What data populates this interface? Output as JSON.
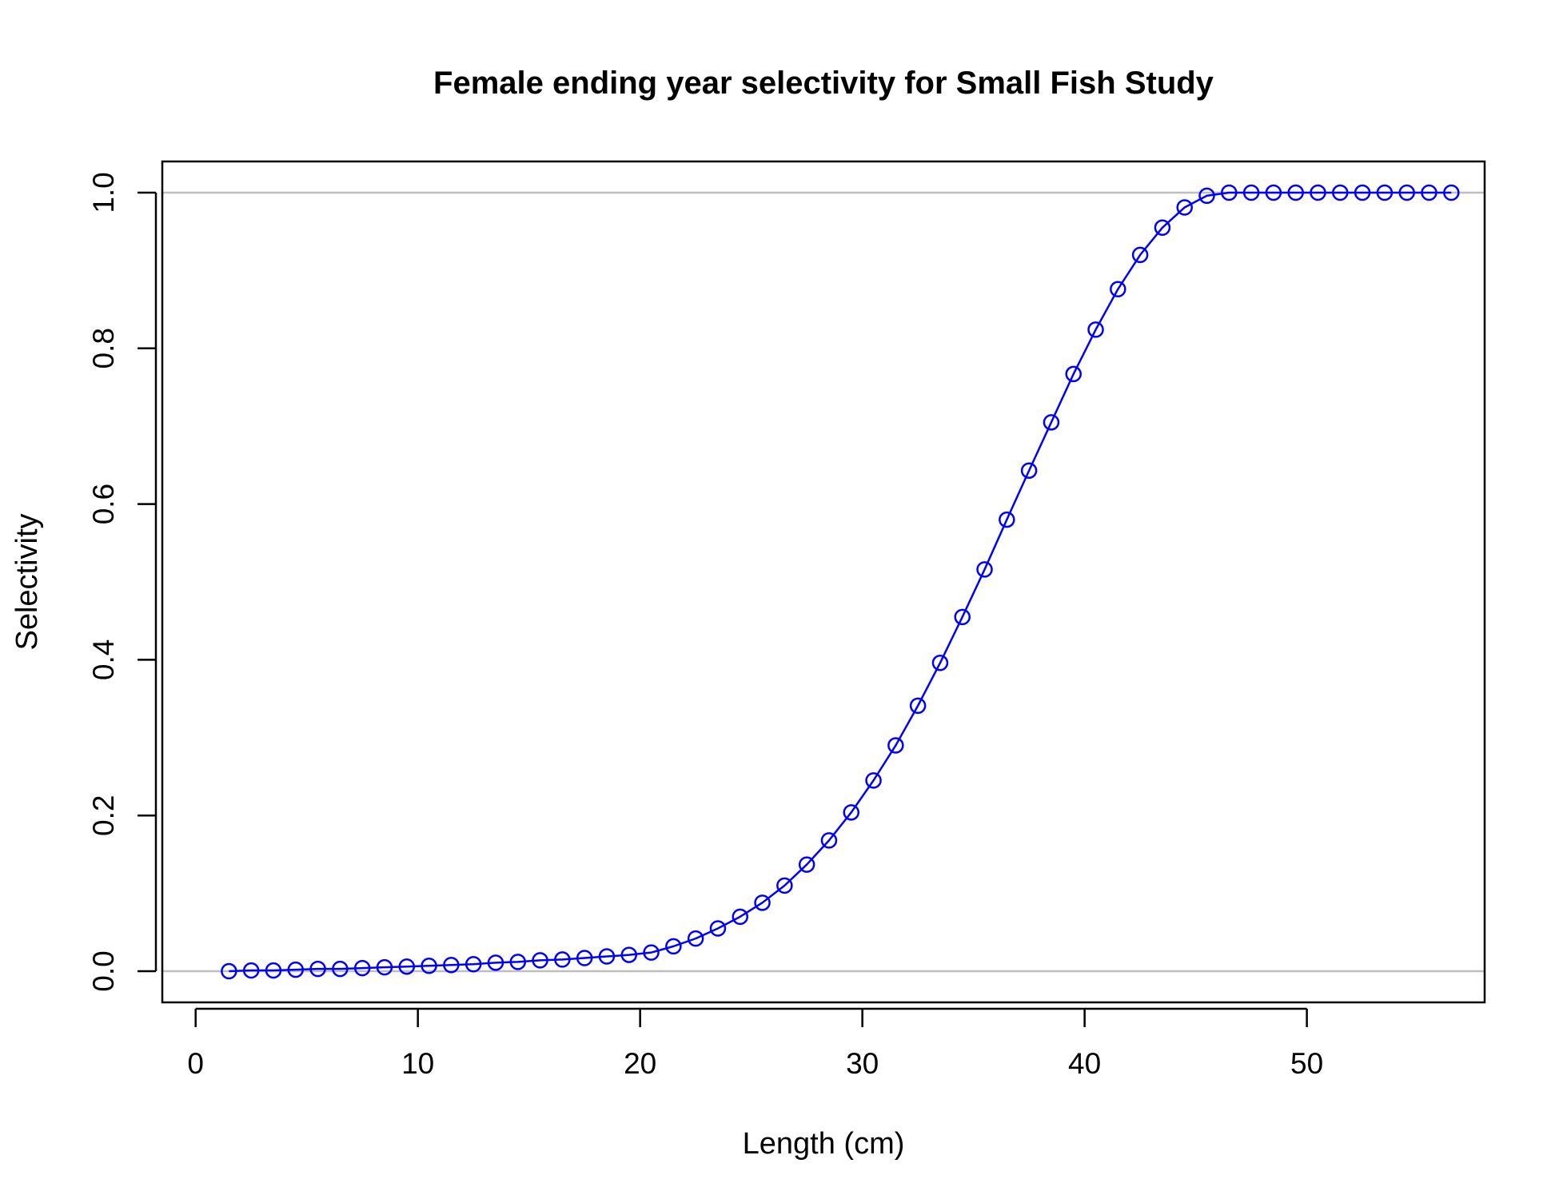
{
  "chart_data": {
    "type": "line",
    "title": "Female ending year selectivity for Small Fish Study",
    "xlabel": "Length (cm)",
    "ylabel": "Selectivity",
    "xlim": [
      -1.5,
      58
    ],
    "ylim": [
      -0.04,
      1.04
    ],
    "xticks": [
      0,
      10,
      20,
      30,
      40,
      50
    ],
    "yticks": [
      0.0,
      0.2,
      0.4,
      0.6,
      0.8,
      1.0
    ],
    "xtick_labels": [
      "0",
      "10",
      "20",
      "30",
      "40",
      "50"
    ],
    "ytick_labels": [
      "0.0",
      "0.2",
      "0.4",
      "0.6",
      "0.8",
      "1.0"
    ],
    "reference_lines": [
      0,
      1
    ],
    "reference_line_color": "#bebebe",
    "grid": false,
    "legend": "none",
    "markers": "open-circle",
    "series_color": "#0000ff",
    "series": [
      {
        "x": [
          1.5,
          2.5,
          3.5,
          4.5,
          5.5,
          6.5,
          7.5,
          8.5,
          9.5,
          10.5,
          11.5,
          12.5,
          13.5,
          14.5,
          15.5,
          16.5,
          17.5,
          18.5,
          19.5,
          20.5,
          21.5,
          22.5,
          23.5,
          24.5,
          25.5,
          26.5,
          27.5,
          28.5,
          29.5,
          30.5,
          31.5,
          32.5,
          33.5,
          34.5,
          35.5,
          36.5,
          37.5,
          38.5,
          39.5,
          40.5,
          41.5,
          42.5,
          43.5,
          44.5,
          45.5,
          46.5,
          47.5,
          48.5,
          49.5,
          50.5,
          51.5,
          52.5,
          53.5,
          54.5,
          55.5,
          56.5
        ],
        "values": [
          0.0,
          0.001,
          0.001,
          0.002,
          0.003,
          0.003,
          0.004,
          0.005,
          0.006,
          0.007,
          0.008,
          0.009,
          0.011,
          0.012,
          0.014,
          0.015,
          0.017,
          0.019,
          0.021,
          0.024,
          0.032,
          0.042,
          0.055,
          0.07,
          0.088,
          0.11,
          0.137,
          0.168,
          0.204,
          0.245,
          0.29,
          0.341,
          0.396,
          0.455,
          0.516,
          0.58,
          0.643,
          0.705,
          0.767,
          0.824,
          0.876,
          0.92,
          0.955,
          0.981,
          0.996,
          1.0,
          1.0,
          1.0,
          1.0,
          1.0,
          1.0,
          1.0,
          1.0,
          1.0,
          1.0,
          1.0
        ]
      }
    ]
  }
}
